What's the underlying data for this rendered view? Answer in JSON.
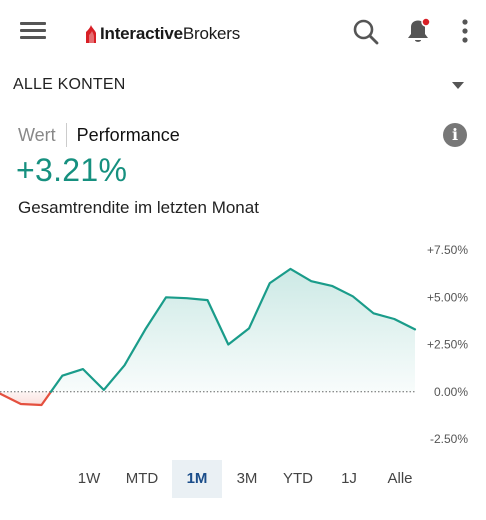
{
  "app": {
    "brand_part1": "Interactive",
    "brand_part2": "Brokers",
    "brand_color": "#d81f26",
    "icons": [
      "menu-icon",
      "search-icon",
      "bell-icon",
      "more-vertical-icon"
    ],
    "notification_dot_color": "#d81f26"
  },
  "account": {
    "label": "ALLE KONTEN",
    "dropdown_icon": "caret-down-icon"
  },
  "tabs": {
    "wert": "Wert",
    "performance": "Performance",
    "active": "Performance",
    "info_icon": "info-icon",
    "info_glyph": "i"
  },
  "summary": {
    "value": "+3.21%",
    "caption": "Gesamtrendite im letzten Monat",
    "value_color": "#16907f"
  },
  "chart_data": {
    "type": "area",
    "ylim": [
      -2.5,
      7.5
    ],
    "yticks": [
      "+7.50%",
      "+5.00%",
      "+2.50%",
      "0.00%",
      "-2.50%"
    ],
    "ytick_values": [
      7.5,
      5.0,
      2.5,
      0.0,
      -2.5
    ],
    "baseline": 0,
    "positive_color": "#1a9c8a",
    "negative_color": "#e4503f",
    "x": [
      0,
      1,
      2,
      3,
      4,
      5,
      6,
      7,
      8,
      9,
      10,
      11,
      12,
      13,
      14,
      15,
      16,
      17,
      18,
      19,
      20
    ],
    "y": [
      -0.1,
      -0.65,
      -0.7,
      0.85,
      1.2,
      0.1,
      1.4,
      3.3,
      5.0,
      4.95,
      4.85,
      2.5,
      3.35,
      5.75,
      6.5,
      5.85,
      5.6,
      5.05,
      4.15,
      3.85,
      3.3
    ]
  },
  "ranges": {
    "items": [
      "1W",
      "MTD",
      "1M",
      "3M",
      "YTD",
      "1J",
      "Alle"
    ],
    "active": "1M"
  }
}
